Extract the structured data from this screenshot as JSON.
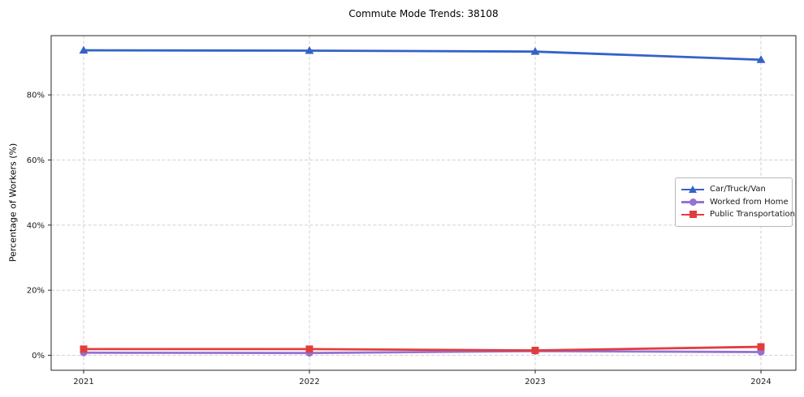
{
  "chart_data": {
    "type": "line",
    "title": "Commute Mode Trends: 38108",
    "xlabel": "",
    "ylabel": "Percentage of Workers (%)",
    "categories": [
      "2021",
      "2022",
      "2023",
      "2024"
    ],
    "yticks": [
      0,
      20,
      40,
      60,
      80
    ],
    "ytick_labels": [
      "0%",
      "20%",
      "40%",
      "60%",
      "80%"
    ],
    "ylim": [
      -4.6,
      98.2
    ],
    "grid": true,
    "grid_style": "dashed",
    "legend_position": "center-right",
    "series": [
      {
        "name": "Car/Truck/Van",
        "color": "#3462c8",
        "marker": "triangle",
        "values": [
          93.7,
          93.6,
          93.3,
          90.8
        ]
      },
      {
        "name": "Worked from Home",
        "color": "#9572d4",
        "marker": "circle",
        "values": [
          0.8,
          0.7,
          1.3,
          1.0
        ]
      },
      {
        "name": "Public Transportation",
        "color": "#e23d3d",
        "marker": "square",
        "values": [
          1.9,
          1.9,
          1.5,
          2.6
        ]
      }
    ],
    "colors": {
      "grid": "#cccccc",
      "spine": "#262626",
      "tick_text": "#1a1a1a",
      "background": "#ffffff"
    }
  }
}
